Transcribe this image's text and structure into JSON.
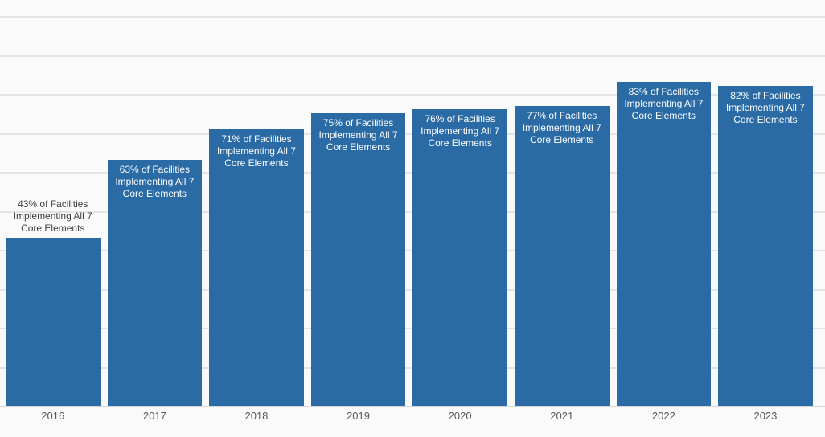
{
  "chart_data": {
    "type": "bar",
    "title": "",
    "xlabel": "",
    "ylabel": "",
    "categories": [
      "2016",
      "2017",
      "2018",
      "2019",
      "2020",
      "2021",
      "2022",
      "2023"
    ],
    "values": [
      43,
      63,
      71,
      75,
      76,
      77,
      83,
      82
    ],
    "series": [
      {
        "name": "Percent of Facilities Implementing All 7 Core Elements",
        "values": [
          43,
          63,
          71,
          75,
          76,
          77,
          83,
          82
        ]
      }
    ],
    "bar_labels": [
      {
        "lines": [
          "43% of Facilities",
          "Implementing All 7",
          "Core Elements"
        ],
        "position": "above"
      },
      {
        "lines": [
          "63% of Facilities",
          "Implementing All 7",
          "Core Elements"
        ],
        "position": "inside"
      },
      {
        "lines": [
          "71% of Facilities",
          "Implementing All 7",
          "Core Elements"
        ],
        "position": "inside"
      },
      {
        "lines": [
          "75% of Facilities",
          "Implementing All 7",
          "Core Elements"
        ],
        "position": "inside"
      },
      {
        "lines": [
          "76% of Facilities",
          "Implementing All 7",
          "Core Elements"
        ],
        "position": "inside"
      },
      {
        "lines": [
          "77% of Facilities",
          "Implementing All 7",
          "Core Elements"
        ],
        "position": "inside"
      },
      {
        "lines": [
          "83% of Facilities",
          "Implementing All 7",
          "Core Elements"
        ],
        "position": "inside"
      },
      {
        "lines": [
          "82% of Facilities",
          "Implementing All 7",
          "Core Elements"
        ],
        "position": "inside"
      }
    ],
    "ylim": [
      0,
      100
    ],
    "gridline_interval_pct": 10,
    "grid": "horizontal",
    "legend": "none",
    "y_axis_labels_visible": false,
    "colors": {
      "bar": "#2a6aa5",
      "label_inside": "#ffffff",
      "label_outside": "#3f3f3f",
      "tick_label": "#595959",
      "gridline": "#e4e4e4",
      "axis_line": "#d6d6d6",
      "background": "#fafafa"
    }
  }
}
